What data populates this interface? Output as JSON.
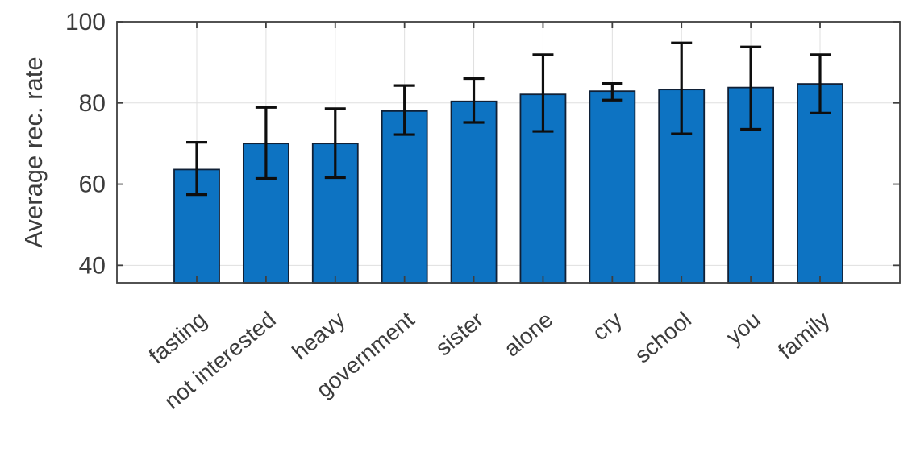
{
  "chart_data": {
    "type": "bar",
    "title": "",
    "xlabel": "",
    "ylabel": "Average rec. rate",
    "categories": [
      "fasting",
      "not interested",
      "heavy",
      "government",
      "sister",
      "alone",
      "cry",
      "school",
      "you",
      "family"
    ],
    "values": [
      63.6,
      70,
      70,
      78,
      80.4,
      82.1,
      82.9,
      83.3,
      83.8,
      84.7
    ],
    "error_low": [
      57.4,
      61.4,
      61.6,
      72.2,
      75.2,
      73.0,
      80.7,
      72.4,
      73.5,
      77.5
    ],
    "error_high": [
      70.3,
      78.9,
      78.6,
      84.3,
      86.0,
      91.9,
      84.8,
      94.8,
      93.8,
      91.9
    ],
    "ylim": [
      35.7,
      100
    ],
    "yticks": [
      40,
      60,
      80,
      100
    ],
    "ytick_labels": [
      "40",
      "60",
      "80",
      "100"
    ],
    "grid": true,
    "legend_position": "none",
    "x_tick_rotation_deg": 40,
    "colors": {
      "bar_fill": "#0d73c2",
      "bar_edge": "#102036",
      "error_bar": "#0e0e0e",
      "axis": "#3f3f3f",
      "grid": "#dfdfdf",
      "tick_text": "#3c3c3c"
    }
  }
}
